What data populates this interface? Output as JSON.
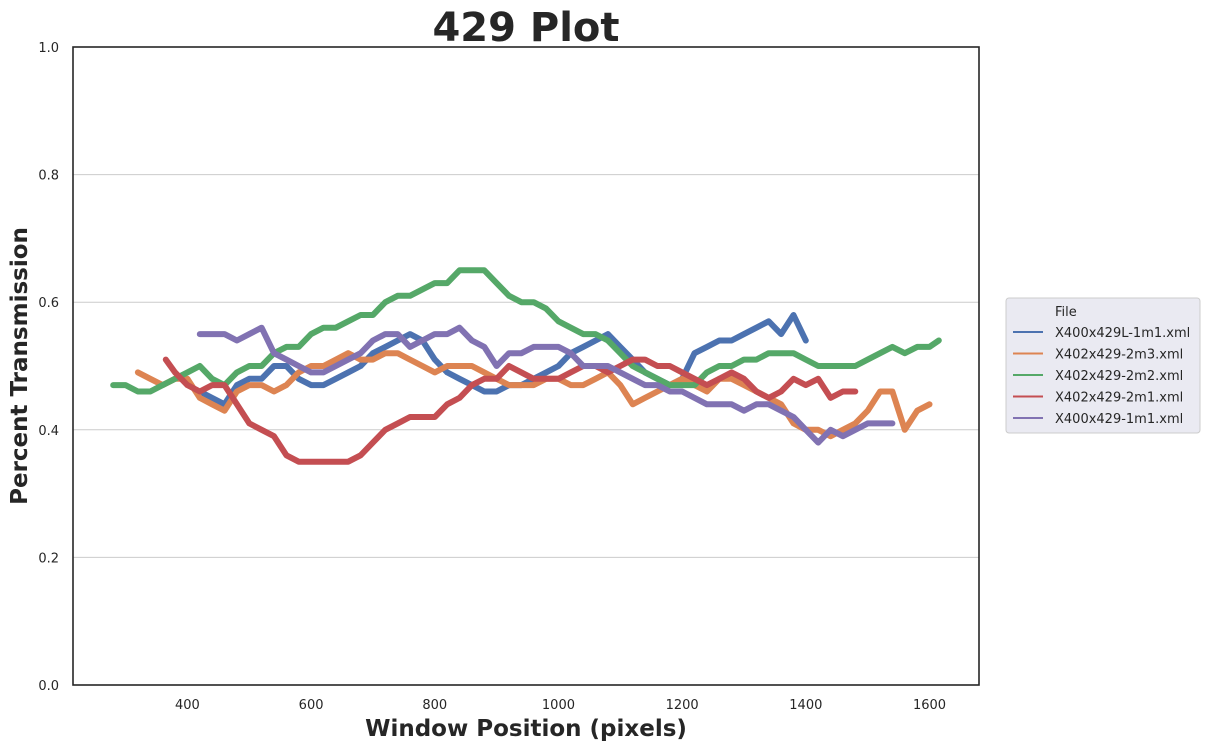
{
  "chart_data": {
    "type": "line",
    "title": "429 Plot",
    "xlabel": "Window Position (pixels)",
    "ylabel": "Percent Transmission",
    "xlim": [
      215,
      1680
    ],
    "ylim": [
      0.0,
      1.0
    ],
    "xticks": [
      400,
      600,
      800,
      1000,
      1200,
      1400,
      1600
    ],
    "xtick_labels": [
      "400",
      "600",
      "800",
      "1000",
      "1200",
      "1400",
      "1600"
    ],
    "yticks": [
      0.0,
      0.2,
      0.4,
      0.6,
      0.8,
      1.0
    ],
    "ytick_labels": [
      "0.0",
      "0.2",
      "0.4",
      "0.6",
      "0.8",
      "1.0"
    ],
    "grid": "horizontal",
    "legend_title": "File",
    "legend_position": "right, outside plot",
    "series": [
      {
        "name": "X400x429L-1m1.xml",
        "color": "#4c72b0",
        "x": [
          420,
          440,
          460,
          480,
          500,
          520,
          540,
          560,
          580,
          600,
          620,
          640,
          660,
          680,
          700,
          720,
          740,
          760,
          780,
          800,
          820,
          840,
          860,
          880,
          900,
          920,
          940,
          960,
          980,
          1000,
          1020,
          1040,
          1060,
          1080,
          1100,
          1120,
          1140,
          1160,
          1180,
          1200,
          1220,
          1240,
          1260,
          1280,
          1300,
          1320,
          1340,
          1360,
          1380,
          1400
        ],
        "y": [
          0.46,
          0.45,
          0.44,
          0.47,
          0.48,
          0.48,
          0.5,
          0.5,
          0.48,
          0.47,
          0.47,
          0.48,
          0.49,
          0.5,
          0.52,
          0.53,
          0.54,
          0.55,
          0.54,
          0.51,
          0.49,
          0.48,
          0.47,
          0.46,
          0.46,
          0.47,
          0.47,
          0.48,
          0.49,
          0.5,
          0.52,
          0.53,
          0.54,
          0.55,
          0.53,
          0.51,
          0.49,
          0.48,
          0.47,
          0.48,
          0.52,
          0.53,
          0.54,
          0.54,
          0.55,
          0.56,
          0.57,
          0.55,
          0.58,
          0.54
        ]
      },
      {
        "name": "X402x429-2m3.xml",
        "color": "#dd8452",
        "x": [
          320,
          340,
          360,
          380,
          400,
          420,
          440,
          460,
          480,
          500,
          520,
          540,
          560,
          580,
          600,
          620,
          640,
          660,
          680,
          700,
          720,
          740,
          760,
          780,
          800,
          820,
          840,
          860,
          880,
          900,
          920,
          940,
          960,
          980,
          1000,
          1020,
          1040,
          1060,
          1080,
          1100,
          1120,
          1140,
          1160,
          1180,
          1200,
          1220,
          1240,
          1260,
          1280,
          1300,
          1320,
          1340,
          1360,
          1380,
          1400,
          1420,
          1440,
          1460,
          1480,
          1500,
          1520,
          1540,
          1560,
          1580,
          1600
        ],
        "y": [
          0.49,
          0.48,
          0.47,
          0.48,
          0.48,
          0.45,
          0.44,
          0.43,
          0.46,
          0.47,
          0.47,
          0.46,
          0.47,
          0.49,
          0.5,
          0.5,
          0.51,
          0.52,
          0.51,
          0.51,
          0.52,
          0.52,
          0.51,
          0.5,
          0.49,
          0.5,
          0.5,
          0.5,
          0.49,
          0.48,
          0.47,
          0.47,
          0.47,
          0.48,
          0.48,
          0.47,
          0.47,
          0.48,
          0.49,
          0.47,
          0.44,
          0.45,
          0.46,
          0.47,
          0.48,
          0.47,
          0.46,
          0.48,
          0.48,
          0.47,
          0.46,
          0.45,
          0.44,
          0.41,
          0.4,
          0.4,
          0.39,
          0.4,
          0.41,
          0.43,
          0.46,
          0.46,
          0.4,
          0.43,
          0.44
        ]
      },
      {
        "name": "X402x429-2m2.xml",
        "color": "#55a868",
        "x": [
          280,
          300,
          320,
          340,
          360,
          380,
          400,
          420,
          440,
          460,
          480,
          500,
          520,
          540,
          560,
          580,
          600,
          620,
          640,
          660,
          680,
          700,
          720,
          740,
          760,
          780,
          800,
          820,
          840,
          860,
          880,
          900,
          920,
          940,
          960,
          980,
          1000,
          1020,
          1040,
          1060,
          1080,
          1100,
          1120,
          1140,
          1160,
          1180,
          1200,
          1220,
          1240,
          1260,
          1280,
          1300,
          1320,
          1340,
          1360,
          1380,
          1400,
          1420,
          1440,
          1460,
          1480,
          1500,
          1520,
          1540,
          1560,
          1580,
          1600,
          1615
        ],
        "y": [
          0.47,
          0.47,
          0.46,
          0.46,
          0.47,
          0.48,
          0.49,
          0.5,
          0.48,
          0.47,
          0.49,
          0.5,
          0.5,
          0.52,
          0.53,
          0.53,
          0.55,
          0.56,
          0.56,
          0.57,
          0.58,
          0.58,
          0.6,
          0.61,
          0.61,
          0.62,
          0.63,
          0.63,
          0.65,
          0.65,
          0.65,
          0.63,
          0.61,
          0.6,
          0.6,
          0.59,
          0.57,
          0.56,
          0.55,
          0.55,
          0.54,
          0.52,
          0.5,
          0.49,
          0.48,
          0.47,
          0.47,
          0.47,
          0.49,
          0.5,
          0.5,
          0.51,
          0.51,
          0.52,
          0.52,
          0.52,
          0.51,
          0.5,
          0.5,
          0.5,
          0.5,
          0.51,
          0.52,
          0.53,
          0.52,
          0.53,
          0.53,
          0.54
        ]
      },
      {
        "name": "X402x429-2m1.xml",
        "color": "#c44e52",
        "x": [
          365,
          380,
          400,
          420,
          440,
          460,
          480,
          500,
          520,
          540,
          560,
          580,
          600,
          620,
          640,
          660,
          680,
          700,
          720,
          740,
          760,
          780,
          800,
          820,
          840,
          860,
          880,
          900,
          920,
          940,
          960,
          980,
          1000,
          1020,
          1040,
          1060,
          1080,
          1100,
          1120,
          1140,
          1160,
          1180,
          1200,
          1220,
          1240,
          1260,
          1280,
          1300,
          1320,
          1340,
          1360,
          1380,
          1400,
          1420,
          1440,
          1460,
          1480
        ],
        "y": [
          0.51,
          0.49,
          0.47,
          0.46,
          0.47,
          0.47,
          0.44,
          0.41,
          0.4,
          0.39,
          0.36,
          0.35,
          0.35,
          0.35,
          0.35,
          0.35,
          0.36,
          0.38,
          0.4,
          0.41,
          0.42,
          0.42,
          0.42,
          0.44,
          0.45,
          0.47,
          0.48,
          0.48,
          0.5,
          0.49,
          0.48,
          0.48,
          0.48,
          0.49,
          0.5,
          0.5,
          0.49,
          0.5,
          0.51,
          0.51,
          0.5,
          0.5,
          0.49,
          0.48,
          0.47,
          0.48,
          0.49,
          0.48,
          0.46,
          0.45,
          0.46,
          0.48,
          0.47,
          0.48,
          0.45,
          0.46,
          0.46
        ]
      },
      {
        "name": "X400x429-1m1.xml",
        "color": "#8172b2",
        "x": [
          420,
          440,
          460,
          480,
          500,
          520,
          540,
          560,
          580,
          600,
          620,
          640,
          660,
          680,
          700,
          720,
          740,
          760,
          780,
          800,
          820,
          840,
          860,
          880,
          900,
          920,
          940,
          960,
          980,
          1000,
          1020,
          1040,
          1060,
          1080,
          1100,
          1120,
          1140,
          1160,
          1180,
          1200,
          1220,
          1240,
          1260,
          1280,
          1300,
          1320,
          1340,
          1360,
          1380,
          1400,
          1420,
          1440,
          1460,
          1480,
          1500,
          1520,
          1540
        ],
        "y": [
          0.55,
          0.55,
          0.55,
          0.54,
          0.55,
          0.56,
          0.52,
          0.51,
          0.5,
          0.49,
          0.49,
          0.5,
          0.51,
          0.52,
          0.54,
          0.55,
          0.55,
          0.53,
          0.54,
          0.55,
          0.55,
          0.56,
          0.54,
          0.53,
          0.5,
          0.52,
          0.52,
          0.53,
          0.53,
          0.53,
          0.52,
          0.5,
          0.5,
          0.5,
          0.49,
          0.48,
          0.47,
          0.47,
          0.46,
          0.46,
          0.45,
          0.44,
          0.44,
          0.44,
          0.43,
          0.44,
          0.44,
          0.43,
          0.42,
          0.4,
          0.38,
          0.4,
          0.39,
          0.4,
          0.41,
          0.41,
          0.41
        ]
      }
    ]
  }
}
